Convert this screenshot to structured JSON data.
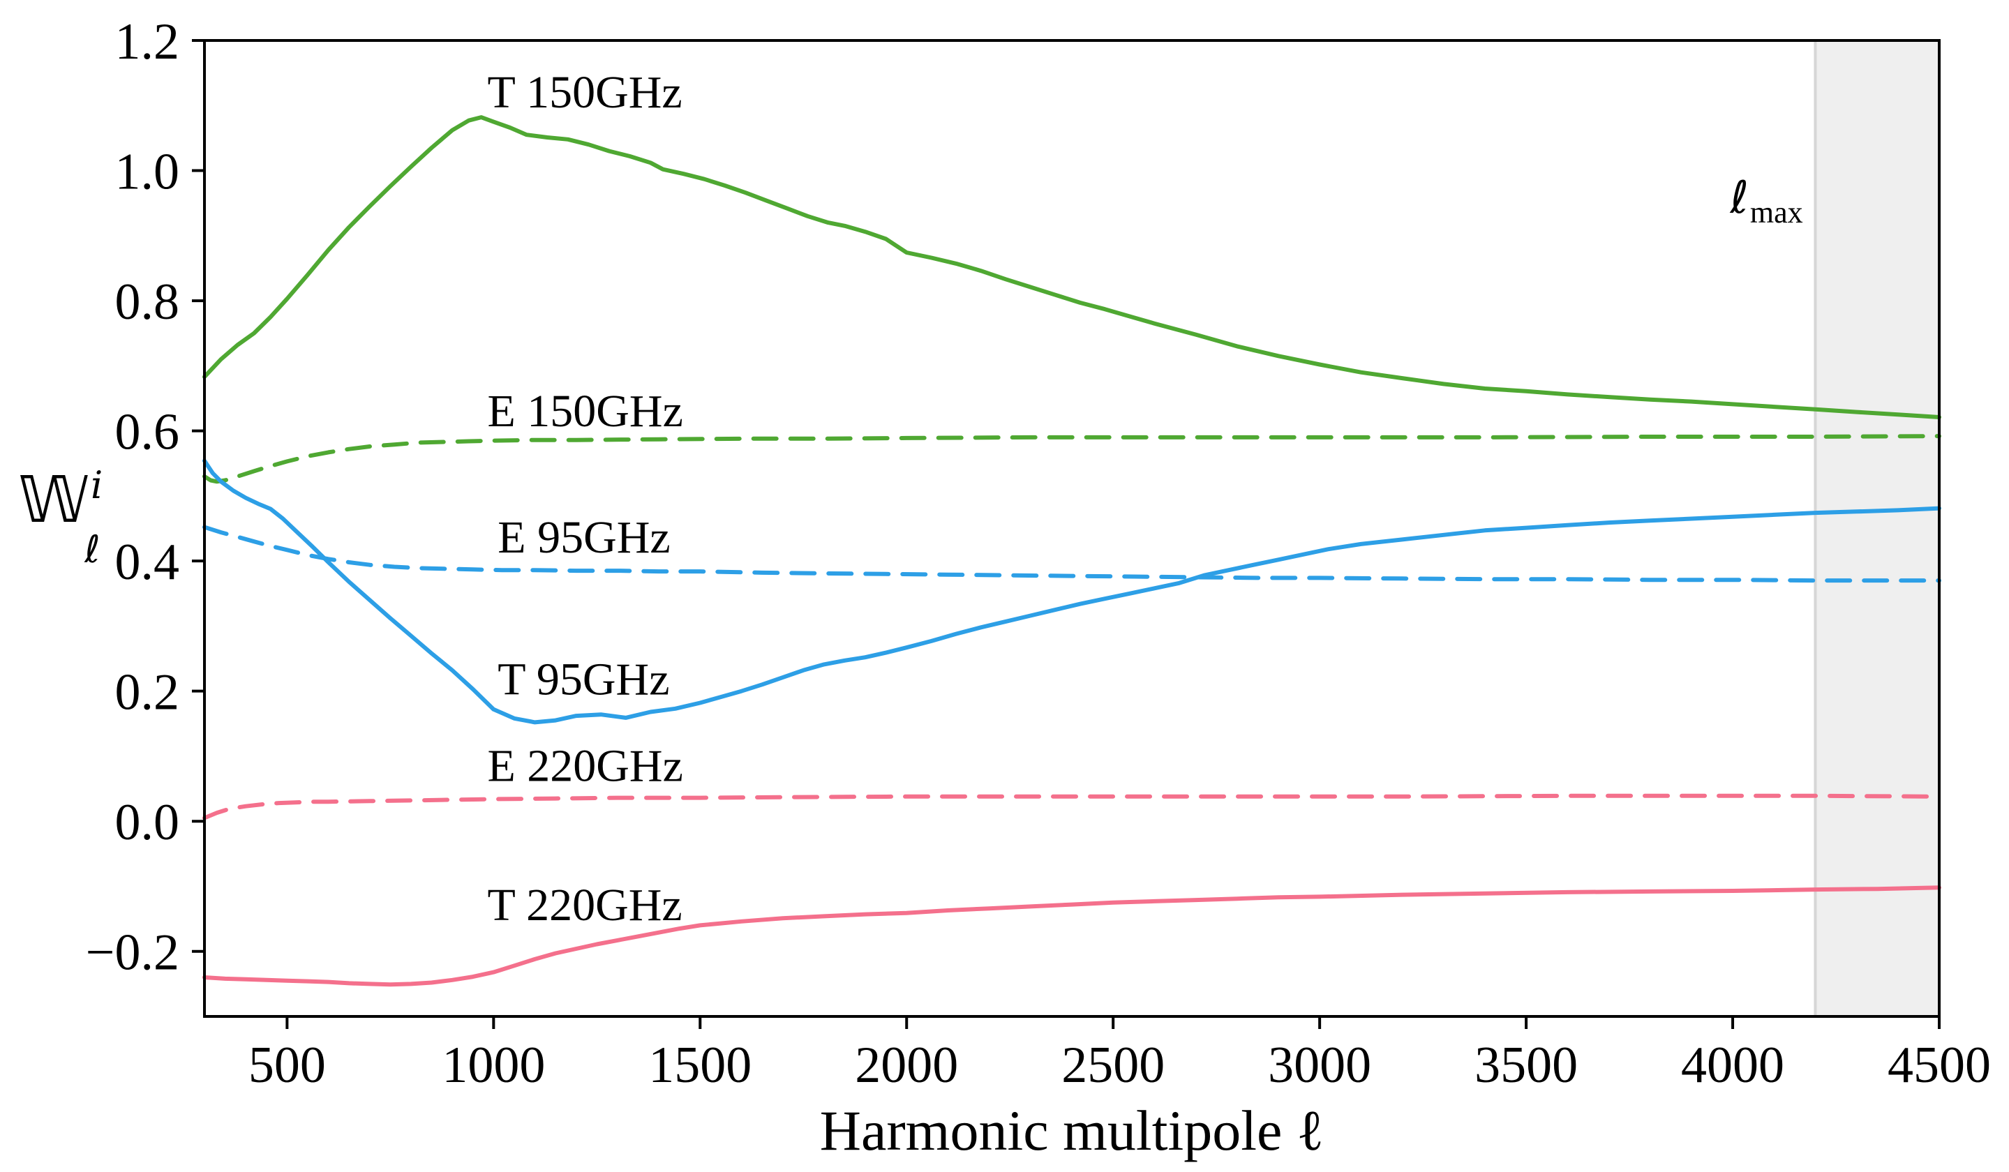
{
  "figure": {
    "background": "#ffffff",
    "frame_color": "#000000"
  },
  "chart_data": {
    "type": "line",
    "title": "",
    "xlabel": "Harmonic multipole ℓ",
    "ylabel": {
      "main": "𝕎",
      "sup": "i",
      "sub": "ℓ"
    },
    "xlim": [
      300,
      4500
    ],
    "ylim": [
      -0.3,
      1.2
    ],
    "grid": false,
    "legend_position": "inline-labels",
    "xticks": {
      "values": [
        500,
        1000,
        1500,
        2000,
        2500,
        3000,
        3500,
        4000,
        4500
      ],
      "labels": [
        "500",
        "1000",
        "1500",
        "2000",
        "2500",
        "3000",
        "3500",
        "4000",
        "4500"
      ]
    },
    "yticks": {
      "values": [
        -0.2,
        0.0,
        0.2,
        0.4,
        0.6,
        0.8,
        1.0,
        1.2
      ],
      "labels": [
        "−0.2",
        "0.0",
        "0.2",
        "0.4",
        "0.6",
        "0.8",
        "1.0",
        "1.2"
      ]
    },
    "shaded_region": {
      "x_start": 4200,
      "x_end": 4500,
      "fill_color": "#efefef",
      "edge_color": "#d6d6d6",
      "label": {
        "main": "ℓ",
        "sub": "max",
        "x": 4170,
        "y": 0.935
      }
    },
    "series": [
      {
        "name": "T 150GHz",
        "color": "#4fa832",
        "style": "solid",
        "label": {
          "text": "T 150GHz",
          "x": 985,
          "y": 1.097
        },
        "points": [
          [
            300,
            0.683
          ],
          [
            340,
            0.71
          ],
          [
            380,
            0.732
          ],
          [
            420,
            0.75
          ],
          [
            460,
            0.775
          ],
          [
            500,
            0.803
          ],
          [
            550,
            0.84
          ],
          [
            600,
            0.878
          ],
          [
            650,
            0.913
          ],
          [
            700,
            0.945
          ],
          [
            750,
            0.976
          ],
          [
            800,
            1.006
          ],
          [
            850,
            1.035
          ],
          [
            900,
            1.062
          ],
          [
            940,
            1.077
          ],
          [
            970,
            1.082
          ],
          [
            1000,
            1.075
          ],
          [
            1040,
            1.066
          ],
          [
            1080,
            1.055
          ],
          [
            1130,
            1.051
          ],
          [
            1180,
            1.048
          ],
          [
            1230,
            1.04
          ],
          [
            1280,
            1.03
          ],
          [
            1330,
            1.022
          ],
          [
            1380,
            1.012
          ],
          [
            1410,
            1.002
          ],
          [
            1460,
            0.995
          ],
          [
            1510,
            0.987
          ],
          [
            1560,
            0.977
          ],
          [
            1610,
            0.966
          ],
          [
            1660,
            0.954
          ],
          [
            1710,
            0.942
          ],
          [
            1760,
            0.93
          ],
          [
            1810,
            0.92
          ],
          [
            1850,
            0.915
          ],
          [
            1900,
            0.906
          ],
          [
            1950,
            0.895
          ],
          [
            2000,
            0.874
          ],
          [
            2060,
            0.866
          ],
          [
            2120,
            0.857
          ],
          [
            2180,
            0.846
          ],
          [
            2240,
            0.833
          ],
          [
            2300,
            0.821
          ],
          [
            2360,
            0.809
          ],
          [
            2420,
            0.797
          ],
          [
            2480,
            0.787
          ],
          [
            2540,
            0.776
          ],
          [
            2600,
            0.765
          ],
          [
            2700,
            0.748
          ],
          [
            2800,
            0.73
          ],
          [
            2900,
            0.715
          ],
          [
            3000,
            0.702
          ],
          [
            3100,
            0.69
          ],
          [
            3200,
            0.681
          ],
          [
            3300,
            0.672
          ],
          [
            3400,
            0.665
          ],
          [
            3500,
            0.661
          ],
          [
            3600,
            0.656
          ],
          [
            3700,
            0.652
          ],
          [
            3800,
            0.648
          ],
          [
            3900,
            0.645
          ],
          [
            4000,
            0.641
          ],
          [
            4100,
            0.637
          ],
          [
            4200,
            0.633
          ],
          [
            4300,
            0.629
          ],
          [
            4400,
            0.625
          ],
          [
            4500,
            0.621
          ]
        ]
      },
      {
        "name": "E 150GHz",
        "color": "#4fa832",
        "style": "dashed",
        "label": {
          "text": "E 150GHz",
          "x": 985,
          "y": 0.607
        },
        "points": [
          [
            300,
            0.53
          ],
          [
            315,
            0.524
          ],
          [
            330,
            0.522
          ],
          [
            350,
            0.524
          ],
          [
            380,
            0.53
          ],
          [
            420,
            0.538
          ],
          [
            460,
            0.546
          ],
          [
            500,
            0.553
          ],
          [
            550,
            0.561
          ],
          [
            600,
            0.567
          ],
          [
            650,
            0.572
          ],
          [
            700,
            0.576
          ],
          [
            760,
            0.579
          ],
          [
            820,
            0.582
          ],
          [
            880,
            0.583
          ],
          [
            940,
            0.584
          ],
          [
            1000,
            0.585
          ],
          [
            1100,
            0.586
          ],
          [
            1200,
            0.586
          ],
          [
            1400,
            0.587
          ],
          [
            1600,
            0.588
          ],
          [
            1800,
            0.588
          ],
          [
            2000,
            0.589
          ],
          [
            2300,
            0.59
          ],
          [
            2600,
            0.59
          ],
          [
            3000,
            0.59
          ],
          [
            3400,
            0.59
          ],
          [
            3800,
            0.591
          ],
          [
            4200,
            0.591
          ],
          [
            4500,
            0.592
          ]
        ]
      },
      {
        "name": "E 95GHz",
        "color": "#2d9fe6",
        "style": "dashed",
        "label": {
          "text": "E 95GHz",
          "x": 1010,
          "y": 0.413
        },
        "points": [
          [
            300,
            0.452
          ],
          [
            340,
            0.444
          ],
          [
            380,
            0.437
          ],
          [
            420,
            0.43
          ],
          [
            460,
            0.423
          ],
          [
            500,
            0.417
          ],
          [
            550,
            0.409
          ],
          [
            600,
            0.403
          ],
          [
            650,
            0.398
          ],
          [
            700,
            0.394
          ],
          [
            760,
            0.391
          ],
          [
            820,
            0.389
          ],
          [
            880,
            0.388
          ],
          [
            950,
            0.387
          ],
          [
            1020,
            0.386
          ],
          [
            1100,
            0.386
          ],
          [
            1200,
            0.385
          ],
          [
            1300,
            0.385
          ],
          [
            1400,
            0.384
          ],
          [
            1500,
            0.384
          ],
          [
            1650,
            0.382
          ],
          [
            1800,
            0.381
          ],
          [
            1950,
            0.38
          ],
          [
            2100,
            0.379
          ],
          [
            2250,
            0.378
          ],
          [
            2400,
            0.377
          ],
          [
            2550,
            0.376
          ],
          [
            2700,
            0.375
          ],
          [
            2850,
            0.374
          ],
          [
            3000,
            0.374
          ],
          [
            3200,
            0.373
          ],
          [
            3400,
            0.372
          ],
          [
            3600,
            0.372
          ],
          [
            3800,
            0.371
          ],
          [
            4000,
            0.371
          ],
          [
            4200,
            0.37
          ],
          [
            4500,
            0.37
          ]
        ]
      },
      {
        "name": "T 95GHz",
        "color": "#2d9fe6",
        "style": "solid",
        "label": {
          "text": "T 95GHz",
          "x": 1010,
          "y": 0.195
        },
        "points": [
          [
            300,
            0.554
          ],
          [
            320,
            0.535
          ],
          [
            340,
            0.522
          ],
          [
            370,
            0.508
          ],
          [
            400,
            0.497
          ],
          [
            430,
            0.488
          ],
          [
            460,
            0.48
          ],
          [
            490,
            0.465
          ],
          [
            520,
            0.447
          ],
          [
            560,
            0.423
          ],
          [
            600,
            0.398
          ],
          [
            650,
            0.368
          ],
          [
            700,
            0.34
          ],
          [
            750,
            0.312
          ],
          [
            800,
            0.285
          ],
          [
            850,
            0.258
          ],
          [
            900,
            0.232
          ],
          [
            950,
            0.203
          ],
          [
            1000,
            0.172
          ],
          [
            1050,
            0.158
          ],
          [
            1100,
            0.152
          ],
          [
            1150,
            0.155
          ],
          [
            1200,
            0.162
          ],
          [
            1260,
            0.164
          ],
          [
            1320,
            0.159
          ],
          [
            1380,
            0.168
          ],
          [
            1440,
            0.173
          ],
          [
            1500,
            0.182
          ],
          [
            1550,
            0.191
          ],
          [
            1600,
            0.2
          ],
          [
            1650,
            0.21
          ],
          [
            1700,
            0.221
          ],
          [
            1750,
            0.232
          ],
          [
            1800,
            0.241
          ],
          [
            1850,
            0.247
          ],
          [
            1900,
            0.252
          ],
          [
            1950,
            0.259
          ],
          [
            2000,
            0.267
          ],
          [
            2060,
            0.277
          ],
          [
            2120,
            0.288
          ],
          [
            2180,
            0.298
          ],
          [
            2240,
            0.307
          ],
          [
            2300,
            0.316
          ],
          [
            2360,
            0.325
          ],
          [
            2420,
            0.334
          ],
          [
            2480,
            0.342
          ],
          [
            2540,
            0.35
          ],
          [
            2600,
            0.358
          ],
          [
            2660,
            0.366
          ],
          [
            2720,
            0.378
          ],
          [
            2780,
            0.386
          ],
          [
            2840,
            0.394
          ],
          [
            2900,
            0.402
          ],
          [
            2960,
            0.41
          ],
          [
            3020,
            0.418
          ],
          [
            3100,
            0.426
          ],
          [
            3200,
            0.433
          ],
          [
            3300,
            0.44
          ],
          [
            3400,
            0.447
          ],
          [
            3500,
            0.451
          ],
          [
            3600,
            0.455
          ],
          [
            3700,
            0.459
          ],
          [
            3800,
            0.462
          ],
          [
            3900,
            0.465
          ],
          [
            4000,
            0.468
          ],
          [
            4100,
            0.471
          ],
          [
            4200,
            0.474
          ],
          [
            4300,
            0.476
          ],
          [
            4400,
            0.478
          ],
          [
            4500,
            0.481
          ]
        ]
      },
      {
        "name": "E 220GHz",
        "color": "#f4708c",
        "style": "dashed",
        "label": {
          "text": "E 220GHz",
          "x": 985,
          "y": 0.062
        },
        "points": [
          [
            300,
            0.005
          ],
          [
            330,
            0.013
          ],
          [
            360,
            0.019
          ],
          [
            400,
            0.023
          ],
          [
            440,
            0.026
          ],
          [
            480,
            0.028
          ],
          [
            520,
            0.029
          ],
          [
            560,
            0.03
          ],
          [
            600,
            0.03
          ],
          [
            700,
            0.031
          ],
          [
            800,
            0.032
          ],
          [
            900,
            0.033
          ],
          [
            1000,
            0.034
          ],
          [
            1150,
            0.035
          ],
          [
            1300,
            0.036
          ],
          [
            1500,
            0.036
          ],
          [
            1700,
            0.037
          ],
          [
            2000,
            0.038
          ],
          [
            2400,
            0.038
          ],
          [
            2800,
            0.038
          ],
          [
            3200,
            0.038
          ],
          [
            3600,
            0.039
          ],
          [
            4000,
            0.039
          ],
          [
            4200,
            0.039
          ],
          [
            4500,
            0.038
          ]
        ]
      },
      {
        "name": "T 220GHz",
        "color": "#f4708c",
        "style": "solid",
        "label": {
          "text": "T 220GHz",
          "x": 985,
          "y": -0.152
        },
        "points": [
          [
            300,
            -0.24
          ],
          [
            350,
            -0.242
          ],
          [
            400,
            -0.243
          ],
          [
            450,
            -0.244
          ],
          [
            500,
            -0.245
          ],
          [
            550,
            -0.246
          ],
          [
            600,
            -0.247
          ],
          [
            650,
            -0.249
          ],
          [
            700,
            -0.25
          ],
          [
            750,
            -0.251
          ],
          [
            800,
            -0.25
          ],
          [
            850,
            -0.248
          ],
          [
            900,
            -0.244
          ],
          [
            950,
            -0.239
          ],
          [
            1000,
            -0.232
          ],
          [
            1050,
            -0.222
          ],
          [
            1100,
            -0.212
          ],
          [
            1150,
            -0.203
          ],
          [
            1200,
            -0.196
          ],
          [
            1250,
            -0.189
          ],
          [
            1300,
            -0.183
          ],
          [
            1350,
            -0.177
          ],
          [
            1400,
            -0.171
          ],
          [
            1450,
            -0.165
          ],
          [
            1500,
            -0.16
          ],
          [
            1550,
            -0.157
          ],
          [
            1600,
            -0.154
          ],
          [
            1700,
            -0.149
          ],
          [
            1800,
            -0.146
          ],
          [
            1900,
            -0.143
          ],
          [
            2000,
            -0.141
          ],
          [
            2100,
            -0.137
          ],
          [
            2200,
            -0.134
          ],
          [
            2300,
            -0.131
          ],
          [
            2400,
            -0.128
          ],
          [
            2500,
            -0.125
          ],
          [
            2600,
            -0.123
          ],
          [
            2700,
            -0.121
          ],
          [
            2800,
            -0.119
          ],
          [
            2900,
            -0.117
          ],
          [
            3000,
            -0.116
          ],
          [
            3200,
            -0.113
          ],
          [
            3400,
            -0.111
          ],
          [
            3600,
            -0.109
          ],
          [
            3800,
            -0.108
          ],
          [
            4000,
            -0.107
          ],
          [
            4200,
            -0.105
          ],
          [
            4350,
            -0.104
          ],
          [
            4500,
            -0.102
          ]
        ]
      }
    ]
  }
}
